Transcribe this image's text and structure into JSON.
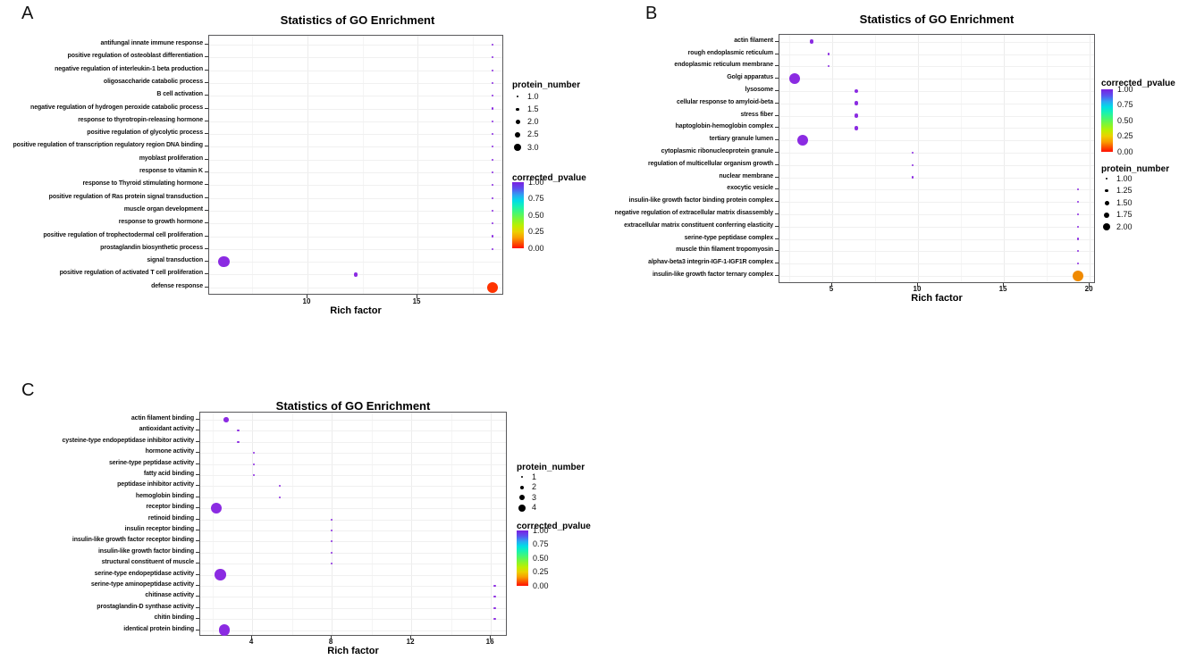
{
  "chart_data": [
    {
      "panel": "A",
      "type": "scatter",
      "title": "Statistics of GO Enrichment",
      "xlabel": "Rich factor",
      "ylabel": "",
      "x_ticks": [
        10,
        15
      ],
      "x_range": [
        5.5,
        18.95
      ],
      "grid": true,
      "legend_position": "right",
      "legend_order": [
        "protein_number",
        "corrected_pvalue"
      ],
      "size_legend": {
        "title": "protein_number",
        "labels": [
          "1.0",
          "1.5",
          "2.0",
          "2.5",
          "3.0"
        ]
      },
      "color_legend": {
        "title": "corrected_pvalue",
        "labels": [
          "1.00",
          "0.75",
          "0.50",
          "0.25",
          "0.00"
        ]
      },
      "points": [
        {
          "category": "antifungal innate immune response",
          "rich_factor": 18.4,
          "protein_number": 1,
          "corrected_pvalue": 1.0,
          "color": "#8b2be2"
        },
        {
          "category": "positive regulation of osteoblast differentiation",
          "rich_factor": 18.4,
          "protein_number": 1,
          "corrected_pvalue": 1.0,
          "color": "#8b2be2"
        },
        {
          "category": "negative regulation of interleukin-1 beta production",
          "rich_factor": 18.4,
          "protein_number": 1,
          "corrected_pvalue": 1.0,
          "color": "#8b2be2"
        },
        {
          "category": "oligosaccharide catabolic process",
          "rich_factor": 18.4,
          "protein_number": 1,
          "corrected_pvalue": 1.0,
          "color": "#8b2be2"
        },
        {
          "category": "B cell activation",
          "rich_factor": 18.4,
          "protein_number": 1,
          "corrected_pvalue": 1.0,
          "color": "#8b2be2"
        },
        {
          "category": "negative regulation of hydrogen peroxide catabolic process",
          "rich_factor": 18.4,
          "protein_number": 1,
          "corrected_pvalue": 1.0,
          "color": "#8b2be2"
        },
        {
          "category": "response to thyrotropin-releasing hormone",
          "rich_factor": 18.4,
          "protein_number": 1,
          "corrected_pvalue": 1.0,
          "color": "#8b2be2"
        },
        {
          "category": "positive regulation of glycolytic process",
          "rich_factor": 18.4,
          "protein_number": 1,
          "corrected_pvalue": 1.0,
          "color": "#8b2be2"
        },
        {
          "category": "positive regulation of transcription regulatory region DNA binding",
          "rich_factor": 18.4,
          "protein_number": 1,
          "corrected_pvalue": 1.0,
          "color": "#8b2be2"
        },
        {
          "category": "myoblast proliferation",
          "rich_factor": 18.4,
          "protein_number": 1,
          "corrected_pvalue": 1.0,
          "color": "#8b2be2"
        },
        {
          "category": "response to vitamin K",
          "rich_factor": 18.4,
          "protein_number": 1,
          "corrected_pvalue": 1.0,
          "color": "#8b2be2"
        },
        {
          "category": "response to Thyroid stimulating hormone",
          "rich_factor": 18.4,
          "protein_number": 1,
          "corrected_pvalue": 1.0,
          "color": "#8b2be2"
        },
        {
          "category": "positive regulation of Ras protein signal transduction",
          "rich_factor": 18.4,
          "protein_number": 1,
          "corrected_pvalue": 1.0,
          "color": "#8b2be2"
        },
        {
          "category": "muscle organ development",
          "rich_factor": 18.4,
          "protein_number": 1,
          "corrected_pvalue": 1.0,
          "color": "#8b2be2"
        },
        {
          "category": "response to growth hormone",
          "rich_factor": 18.4,
          "protein_number": 1,
          "corrected_pvalue": 1.0,
          "color": "#8b2be2"
        },
        {
          "category": "positive regulation of trophectodermal cell proliferation",
          "rich_factor": 18.4,
          "protein_number": 1,
          "corrected_pvalue": 1.0,
          "color": "#8b2be2"
        },
        {
          "category": "prostaglandin biosynthetic process",
          "rich_factor": 18.4,
          "protein_number": 1,
          "corrected_pvalue": 1.0,
          "color": "#8b2be2"
        },
        {
          "category": "signal transduction",
          "rich_factor": 6.2,
          "protein_number": 3,
          "corrected_pvalue": 1.0,
          "color": "#8b2be2"
        },
        {
          "category": "positive regulation of activated T cell proliferation",
          "rich_factor": 12.2,
          "protein_number": 1.5,
          "corrected_pvalue": 1.0,
          "color": "#8b2be2"
        },
        {
          "category": "defense response",
          "rich_factor": 18.4,
          "protein_number": 3,
          "corrected_pvalue": 0.02,
          "color": "#ff3300"
        }
      ]
    },
    {
      "panel": "B",
      "type": "scatter",
      "title": "Statistics of GO Enrichment",
      "xlabel": "Rich factor",
      "ylabel": "",
      "x_ticks": [
        5,
        10,
        15,
        20
      ],
      "x_range": [
        1.9,
        20.4
      ],
      "grid": true,
      "legend_position": "right",
      "legend_order": [
        "corrected_pvalue",
        "protein_number"
      ],
      "size_legend": {
        "title": "protein_number",
        "labels": [
          "1.00",
          "1.25",
          "1.50",
          "1.75",
          "2.00"
        ]
      },
      "color_legend": {
        "title": "corrected_pvalue",
        "labels": [
          "1.00",
          "0.75",
          "0.50",
          "0.25",
          "0.00"
        ]
      },
      "points": [
        {
          "category": "actin filament",
          "rich_factor": 3.8,
          "protein_number": 1.25,
          "corrected_pvalue": 1.0,
          "color": "#8b2be2"
        },
        {
          "category": "rough endoplasmic reticulum",
          "rich_factor": 4.8,
          "protein_number": 1,
          "corrected_pvalue": 1.0,
          "color": "#8b2be2"
        },
        {
          "category": "endoplasmic reticulum membrane",
          "rich_factor": 4.8,
          "protein_number": 1,
          "corrected_pvalue": 1.0,
          "color": "#8b2be2"
        },
        {
          "category": "Golgi apparatus",
          "rich_factor": 2.8,
          "protein_number": 2,
          "corrected_pvalue": 1.0,
          "color": "#8b2be2"
        },
        {
          "category": "lysosome",
          "rich_factor": 6.4,
          "protein_number": 1.25,
          "corrected_pvalue": 1.0,
          "color": "#8b2be2"
        },
        {
          "category": "cellular response to amyloid-beta",
          "rich_factor": 6.4,
          "protein_number": 1.25,
          "corrected_pvalue": 1.0,
          "color": "#8b2be2"
        },
        {
          "category": "stress fiber",
          "rich_factor": 6.4,
          "protein_number": 1.25,
          "corrected_pvalue": 1.0,
          "color": "#8b2be2"
        },
        {
          "category": "haptoglobin-hemoglobin complex",
          "rich_factor": 6.4,
          "protein_number": 1.25,
          "corrected_pvalue": 1.0,
          "color": "#8b2be2"
        },
        {
          "category": "tertiary granule lumen",
          "rich_factor": 3.3,
          "protein_number": 2,
          "corrected_pvalue": 1.0,
          "color": "#8b2be2"
        },
        {
          "category": "cytoplasmic ribonucleoprotein granule",
          "rich_factor": 9.7,
          "protein_number": 1,
          "corrected_pvalue": 1.0,
          "color": "#8b2be2"
        },
        {
          "category": "regulation of multicellular organism growth",
          "rich_factor": 9.7,
          "protein_number": 1,
          "corrected_pvalue": 1.0,
          "color": "#8b2be2"
        },
        {
          "category": "nuclear membrane",
          "rich_factor": 9.7,
          "protein_number": 1,
          "corrected_pvalue": 1.0,
          "color": "#8b2be2"
        },
        {
          "category": "exocytic vesicle",
          "rich_factor": 19.3,
          "protein_number": 1,
          "corrected_pvalue": 1.0,
          "color": "#8b2be2"
        },
        {
          "category": "insulin-like growth factor binding protein complex",
          "rich_factor": 19.3,
          "protein_number": 1,
          "corrected_pvalue": 1.0,
          "color": "#8b2be2"
        },
        {
          "category": "negative regulation of extracellular matrix disassembly",
          "rich_factor": 19.3,
          "protein_number": 1,
          "corrected_pvalue": 1.0,
          "color": "#8b2be2"
        },
        {
          "category": "extracellular matrix constituent conferring elasticity",
          "rich_factor": 19.3,
          "protein_number": 1,
          "corrected_pvalue": 1.0,
          "color": "#8b2be2"
        },
        {
          "category": "serine-type peptidase complex",
          "rich_factor": 19.3,
          "protein_number": 1,
          "corrected_pvalue": 1.0,
          "color": "#8b2be2"
        },
        {
          "category": "muscle thin filament tropomyosin",
          "rich_factor": 19.3,
          "protein_number": 1,
          "corrected_pvalue": 1.0,
          "color": "#8b2be2"
        },
        {
          "category": "alphav-beta3 integrin-IGF-1-IGF1R complex",
          "rich_factor": 19.3,
          "protein_number": 1,
          "corrected_pvalue": 1.0,
          "color": "#8b2be2"
        },
        {
          "category": "insulin-like growth factor ternary complex",
          "rich_factor": 19.3,
          "protein_number": 2,
          "corrected_pvalue": 0.15,
          "color": "#f08a00"
        }
      ]
    },
    {
      "panel": "C",
      "type": "scatter",
      "title": "Statistics of GO Enrichment",
      "xlabel": "Rich factor",
      "ylabel": "",
      "x_ticks": [
        4,
        8,
        12,
        16
      ],
      "x_range": [
        1.4,
        16.85
      ],
      "grid": true,
      "legend_position": "right",
      "legend_order": [
        "protein_number",
        "corrected_pvalue"
      ],
      "size_legend": {
        "title": "protein_number",
        "labels": [
          "1",
          "2",
          "3",
          "4"
        ]
      },
      "color_legend": {
        "title": "corrected_pvalue",
        "labels": [
          "1.00",
          "0.75",
          "0.50",
          "0.25",
          "0.00"
        ]
      },
      "points": [
        {
          "category": "actin filament binding",
          "rich_factor": 2.7,
          "protein_number": 2,
          "corrected_pvalue": 1.0,
          "color": "#8b2be2"
        },
        {
          "category": "antioxidant activity",
          "rich_factor": 3.3,
          "protein_number": 1,
          "corrected_pvalue": 1.0,
          "color": "#8b2be2"
        },
        {
          "category": "cysteine-type endopeptidase inhibitor activity",
          "rich_factor": 3.3,
          "protein_number": 1,
          "corrected_pvalue": 1.0,
          "color": "#8b2be2"
        },
        {
          "category": "hormone activity",
          "rich_factor": 4.1,
          "protein_number": 1,
          "corrected_pvalue": 1.0,
          "color": "#8b2be2"
        },
        {
          "category": "serine-type peptidase activity",
          "rich_factor": 4.1,
          "protein_number": 1,
          "corrected_pvalue": 1.0,
          "color": "#8b2be2"
        },
        {
          "category": "fatty acid binding",
          "rich_factor": 4.1,
          "protein_number": 1,
          "corrected_pvalue": 1.0,
          "color": "#8b2be2"
        },
        {
          "category": "peptidase inhibitor activity",
          "rich_factor": 5.4,
          "protein_number": 1,
          "corrected_pvalue": 1.0,
          "color": "#8b2be2"
        },
        {
          "category": "hemoglobin binding",
          "rich_factor": 5.4,
          "protein_number": 1,
          "corrected_pvalue": 1.0,
          "color": "#8b2be2"
        },
        {
          "category": "receptor binding",
          "rich_factor": 2.2,
          "protein_number": 4,
          "corrected_pvalue": 1.0,
          "color": "#8b2be2"
        },
        {
          "category": "retinoid binding",
          "rich_factor": 8.0,
          "protein_number": 1,
          "corrected_pvalue": 1.0,
          "color": "#8b2be2"
        },
        {
          "category": "insulin receptor binding",
          "rich_factor": 8.0,
          "protein_number": 1,
          "corrected_pvalue": 1.0,
          "color": "#8b2be2"
        },
        {
          "category": "insulin-like growth factor receptor binding",
          "rich_factor": 8.0,
          "protein_number": 1,
          "corrected_pvalue": 1.0,
          "color": "#8b2be2"
        },
        {
          "category": "insulin-like growth factor binding",
          "rich_factor": 8.0,
          "protein_number": 1,
          "corrected_pvalue": 1.0,
          "color": "#8b2be2"
        },
        {
          "category": "structural constituent of muscle",
          "rich_factor": 8.0,
          "protein_number": 1,
          "corrected_pvalue": 1.0,
          "color": "#8b2be2"
        },
        {
          "category": "serine-type endopeptidase activity",
          "rich_factor": 2.4,
          "protein_number": 4,
          "corrected_pvalue": 1.0,
          "color": "#8b2be2"
        },
        {
          "category": "serine-type aminopeptidase activity",
          "rich_factor": 16.2,
          "protein_number": 1,
          "corrected_pvalue": 1.0,
          "color": "#8b2be2"
        },
        {
          "category": "chitinase activity",
          "rich_factor": 16.2,
          "protein_number": 1,
          "corrected_pvalue": 1.0,
          "color": "#8b2be2"
        },
        {
          "category": "prostaglandin-D synthase activity",
          "rich_factor": 16.2,
          "protein_number": 1,
          "corrected_pvalue": 1.0,
          "color": "#8b2be2"
        },
        {
          "category": "chitin binding",
          "rich_factor": 16.2,
          "protein_number": 1,
          "corrected_pvalue": 1.0,
          "color": "#8b2be2"
        },
        {
          "category": "identical protein binding",
          "rich_factor": 2.6,
          "protein_number": 4,
          "corrected_pvalue": 1.0,
          "color": "#8b2be2"
        }
      ]
    }
  ]
}
